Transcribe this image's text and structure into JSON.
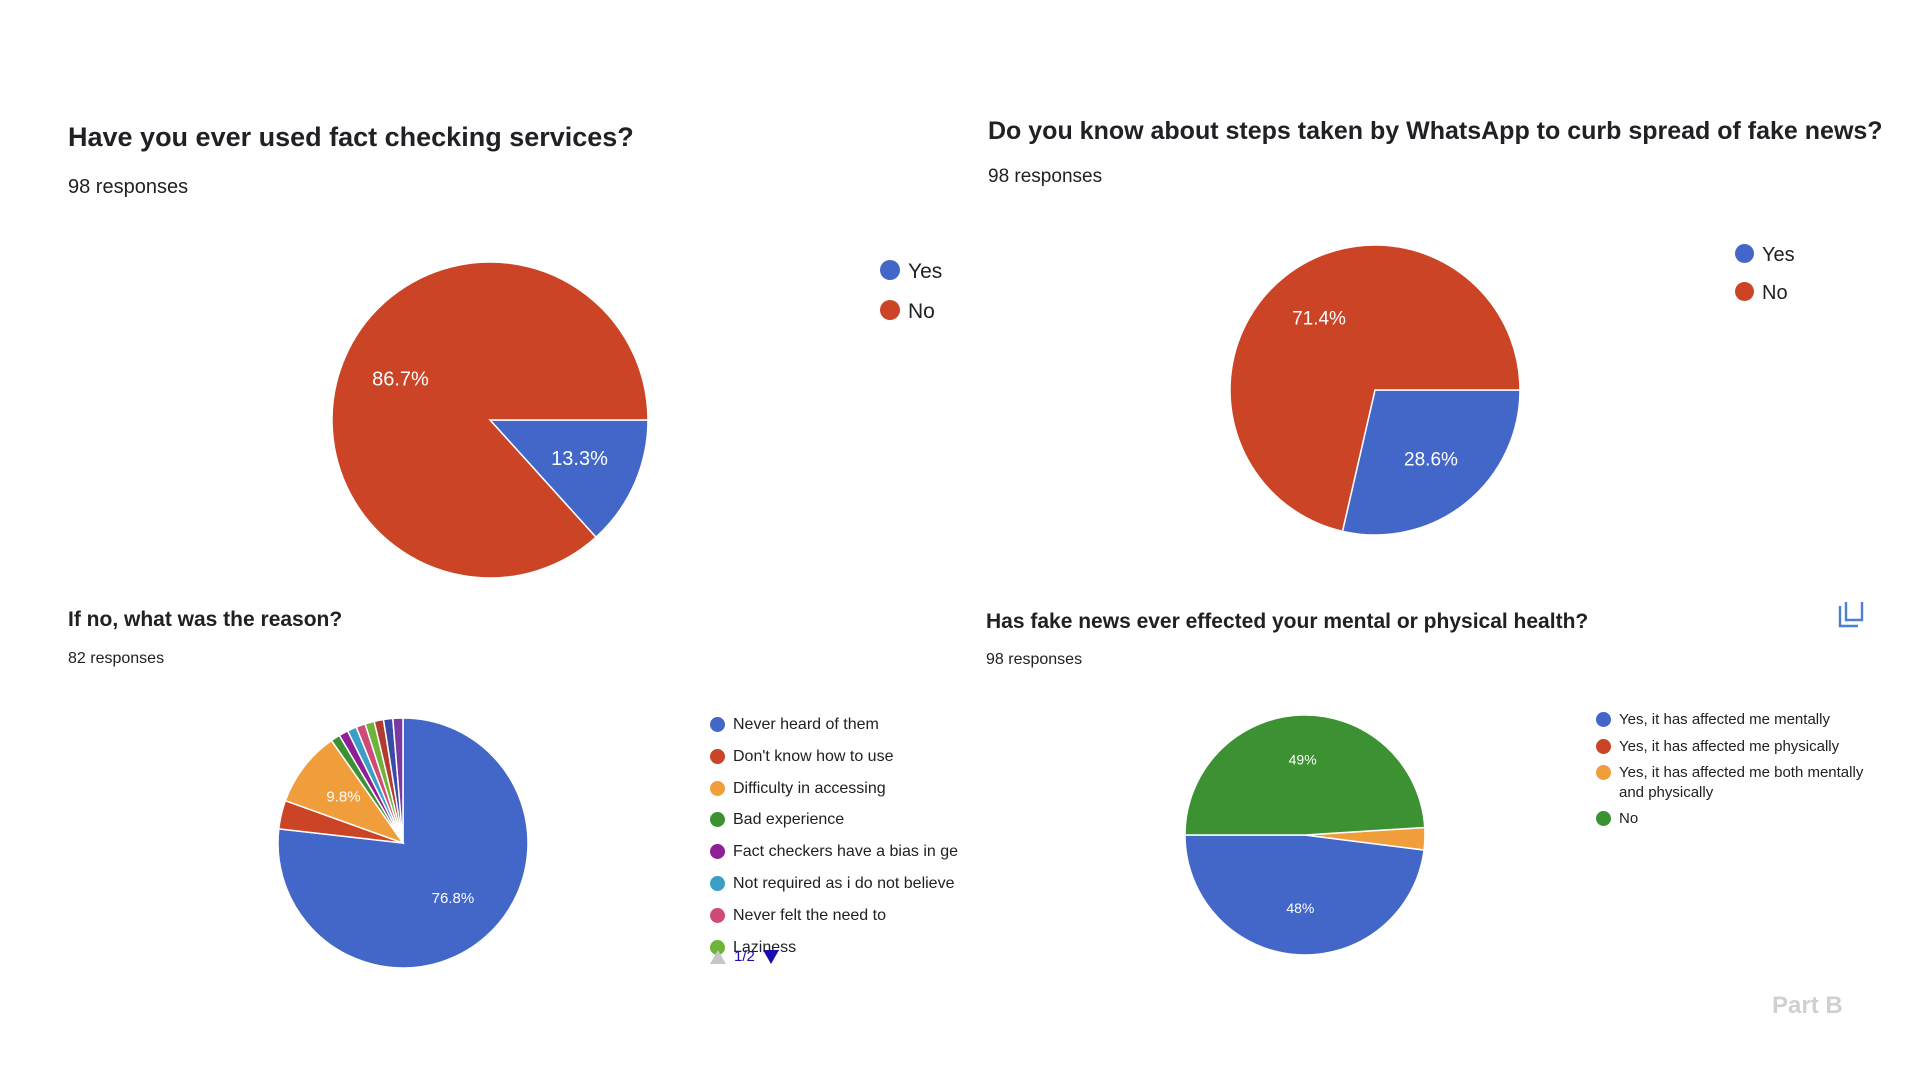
{
  "charts": [
    {
      "title": "Have you ever used fact checking services?",
      "responses": "98 responses",
      "chart_index": 0
    },
    {
      "title": "Do you know about steps taken by WhatsApp to curb spread of fake news?",
      "responses": "98 responses",
      "chart_index": 1
    },
    {
      "title": "If no, what was the reason?",
      "responses": "82 responses",
      "chart_index": 2,
      "pager": "1/2"
    },
    {
      "title": "Has fake news ever effected your mental or physical health?",
      "responses": "98 responses",
      "chart_index": 3
    }
  ],
  "footer": "Part B",
  "icons": {
    "copy": "copy-icon",
    "pager_prev": "triangle-up-icon",
    "pager_next": "triangle-down-icon"
  },
  "chart_data": [
    {
      "type": "pie",
      "title": "Have you ever used fact checking services?",
      "legend_position": "right",
      "slices": [
        {
          "label": "Yes",
          "value": 13.3,
          "display": "13.3%",
          "color": "#4366c9"
        },
        {
          "label": "No",
          "value": 86.7,
          "display": "86.7%",
          "color": "#cc4426"
        }
      ]
    },
    {
      "type": "pie",
      "title": "Do you know about steps taken by WhatsApp to curb spread of fake news?",
      "legend_position": "right",
      "slices": [
        {
          "label": "Yes",
          "value": 28.6,
          "display": "28.6%",
          "color": "#4366c9"
        },
        {
          "label": "No",
          "value": 71.4,
          "display": "71.4%",
          "color": "#cc4426"
        }
      ]
    },
    {
      "type": "pie",
      "title": "If no, what was the reason?",
      "legend_position": "right",
      "slices": [
        {
          "label": "Never heard of them",
          "value": 76.8,
          "display": "76.8%",
          "color": "#4366c9"
        },
        {
          "label": "Don't know how to use",
          "value": 3.7,
          "display": "",
          "color": "#cc4426"
        },
        {
          "label": "Difficulty in accessing",
          "value": 9.8,
          "display": "9.8%",
          "color": "#f09e3b"
        },
        {
          "label": "Bad experience",
          "value": 1.2,
          "display": "",
          "color": "#3c9232"
        },
        {
          "label": "Fact checkers have a bias in ge",
          "value": 1.2,
          "display": "",
          "color": "#8e1f96"
        },
        {
          "label": "Not required as i do not believe",
          "value": 1.2,
          "display": "",
          "color": "#3b9ec7"
        },
        {
          "label": "Never felt the need to",
          "value": 1.2,
          "display": "",
          "color": "#cf4a78"
        },
        {
          "label": "Laziness",
          "value": 1.2,
          "display": "",
          "color": "#6fb33a"
        },
        {
          "label": "",
          "value": 1.2,
          "display": "",
          "color": "#b33a2f"
        },
        {
          "label": "",
          "value": 1.2,
          "display": "",
          "color": "#3a4aa5"
        },
        {
          "label": "",
          "value": 1.3,
          "display": "",
          "color": "#7a3aa0"
        }
      ]
    },
    {
      "type": "pie",
      "title": "Has fake news ever effected your mental or physical health?",
      "legend_position": "right",
      "slices": [
        {
          "label": "Yes, it has affected me mentally",
          "value": 48,
          "display": "48%",
          "color": "#4366c9"
        },
        {
          "label": "Yes, it has affected me physically",
          "value": 0,
          "display": "",
          "color": "#cc4426"
        },
        {
          "label": "Yes, it has affected me both mentally and physically",
          "value": 3,
          "display": "",
          "color": "#f09e3b"
        },
        {
          "label": "No",
          "value": 49,
          "display": "49%",
          "color": "#3c9232"
        }
      ]
    }
  ]
}
